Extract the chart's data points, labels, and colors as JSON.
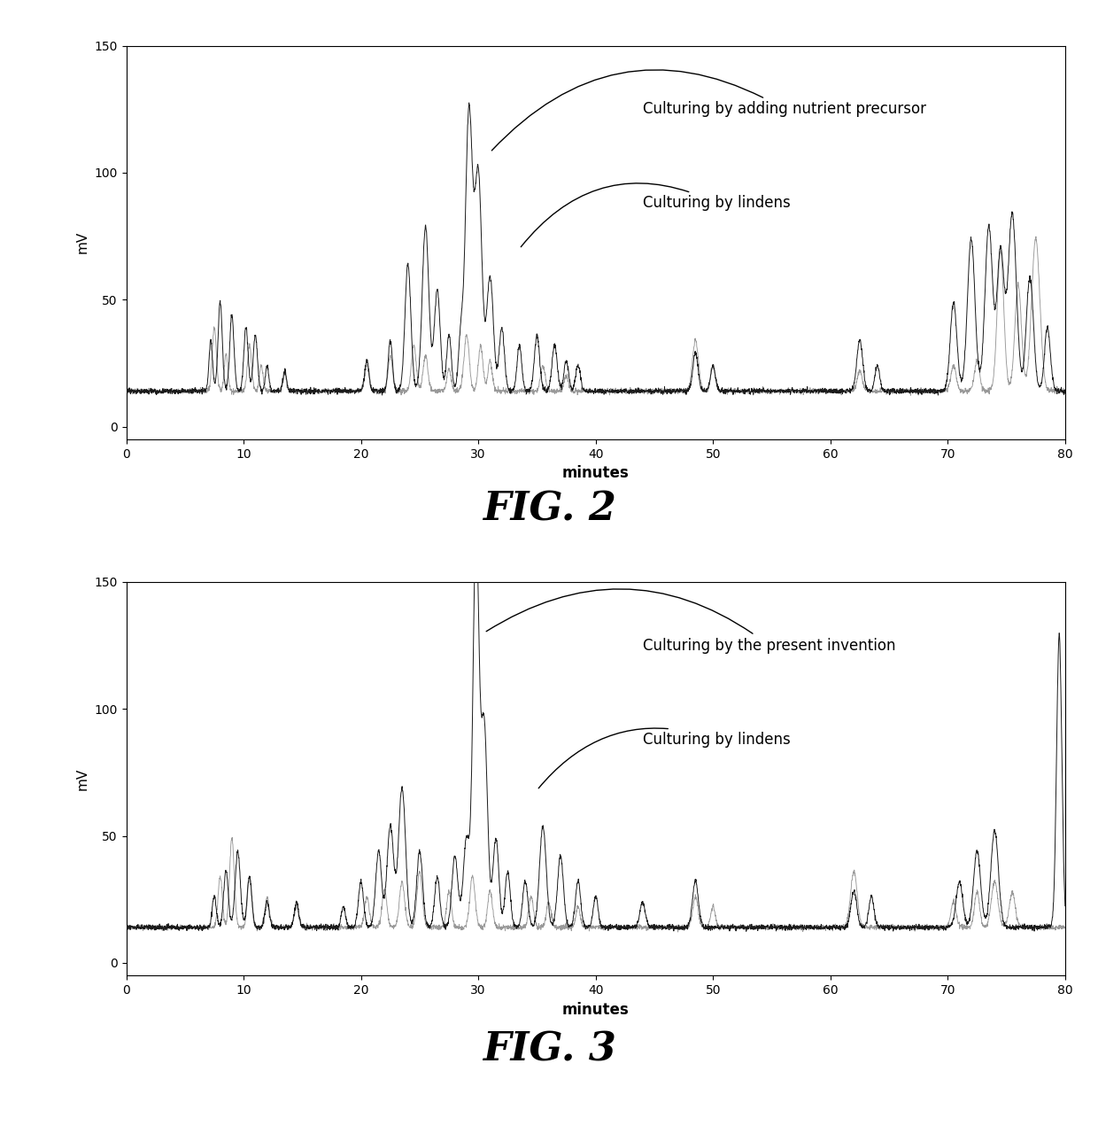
{
  "fig2_label": "FIG. 2",
  "fig3_label": "FIG. 3",
  "ylabel": "mV",
  "xlabel": "minutes",
  "ylim": [
    -5,
    150
  ],
  "xlim": [
    0,
    80
  ],
  "yticks": [
    0,
    50,
    100,
    150
  ],
  "xticks": [
    0,
    10,
    20,
    30,
    40,
    50,
    60,
    70,
    80
  ],
  "fig2_label1": "Culturing by adding nutrient precursor",
  "fig2_label2": "Culturing by lindens",
  "fig3_label1": "Culturing by the present invention",
  "fig3_label2": "Culturing by lindens",
  "line_dark_color": "#1a1a1a",
  "line_gray_color": "#999999",
  "background_color": "#ffffff",
  "fig_label_fontsize": 32,
  "annotation_fontsize": 12,
  "axis_ylabel_fontsize": 11,
  "axis_xlabel_fontsize": 12,
  "tick_fontsize": 10
}
